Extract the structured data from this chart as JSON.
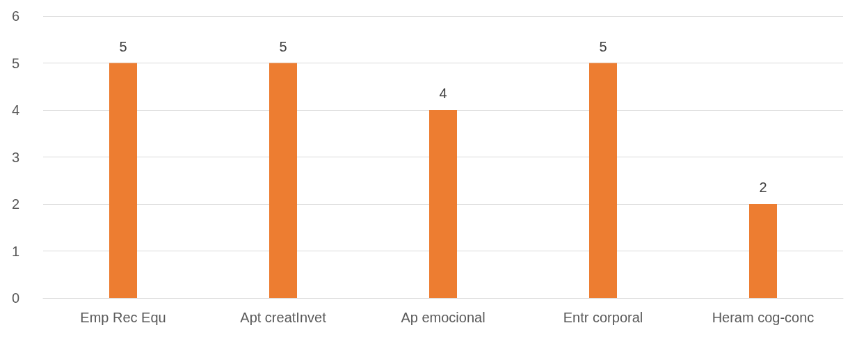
{
  "chart_data": {
    "type": "bar",
    "categories": [
      "Emp Rec Equ",
      "Apt creatInvet",
      "Ap emocional",
      "Entr corporal",
      "Heram cog-conc"
    ],
    "values": [
      5,
      5,
      4,
      5,
      2
    ],
    "color": "#ed7d31",
    "ylim": [
      0,
      6
    ],
    "yticks": [
      0,
      1,
      2,
      3,
      4,
      5,
      6
    ],
    "grid": "y",
    "data_labels": true
  }
}
